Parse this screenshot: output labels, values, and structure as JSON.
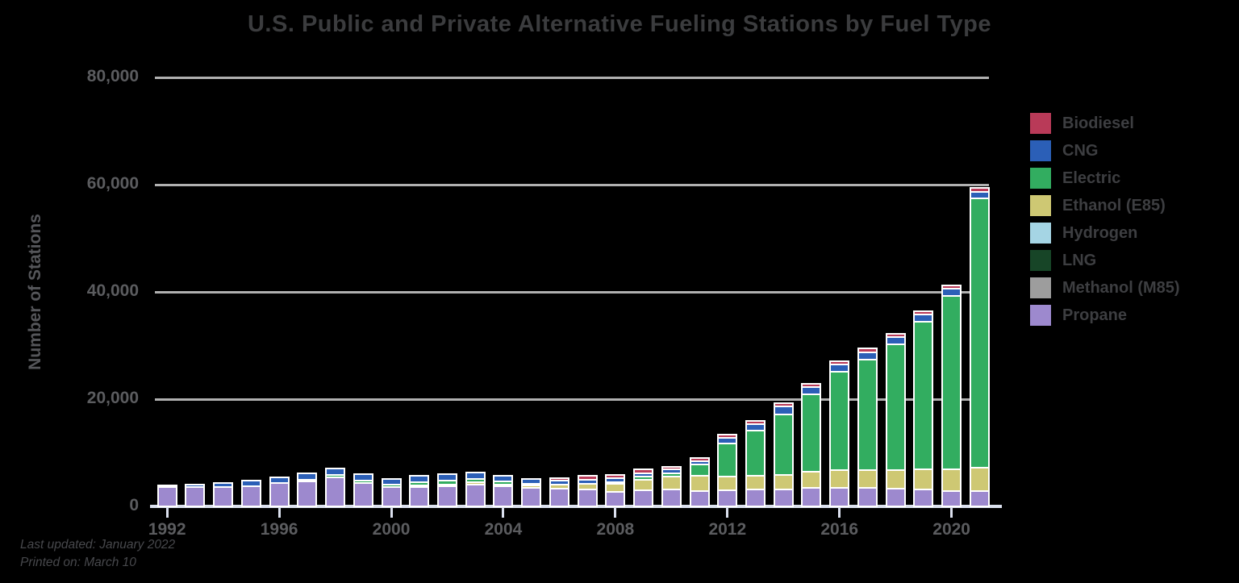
{
  "title": "U.S. Public and Private Alternative Fueling Stations by Fuel Type",
  "y_axis": {
    "label": "Number of Stations",
    "ticks": [
      {
        "value": 80000,
        "label": "80,000"
      },
      {
        "value": 60000,
        "label": "60,000"
      },
      {
        "value": 40000,
        "label": "40,000"
      },
      {
        "value": 20000,
        "label": "20,000"
      },
      {
        "value": 0,
        "label": "0"
      }
    ]
  },
  "x_axis": {
    "tick_years": [
      "1992",
      "1996",
      "2000",
      "2004",
      "2008",
      "2012",
      "2016",
      "2020"
    ]
  },
  "footer": {
    "line1": "Last updated: January 2022",
    "line2": "Printed on: March 10"
  },
  "colors": {
    "background": "#000000",
    "bar_outline": "#ffffff",
    "gridline": "#b0b0b0",
    "axis_line": "#dbe0ee",
    "title_text": "#3b3c3e",
    "axis_text": "#5b5c5f",
    "legend_text": "#3d3e41"
  },
  "legend": [
    {
      "name": "Biodiesel",
      "color": "#b93a58"
    },
    {
      "name": "CNG",
      "color": "#2b5fb7"
    },
    {
      "name": "Electric",
      "color": "#32ad60"
    },
    {
      "name": "Ethanol (E85)",
      "color": "#cec873"
    },
    {
      "name": "Hydrogen",
      "color": "#a5d5e4"
    },
    {
      "name": "LNG",
      "color": "#174527"
    },
    {
      "name": "Methanol (M85)",
      "color": "#9d9d9d"
    },
    {
      "name": "Propane",
      "color": "#9d89ce"
    }
  ],
  "chart_data": {
    "type": "bar",
    "stacked": true,
    "title": "U.S. Public and Private Alternative Fueling Stations by Fuel Type",
    "xlabel": "",
    "ylabel": "Number of Stations",
    "ylim": [
      0,
      80000
    ],
    "grid": true,
    "legend_position": "right",
    "stack_order_top_to_bottom": [
      "Biodiesel",
      "CNG",
      "Electric",
      "Ethanol (E85)",
      "Hydrogen",
      "LNG",
      "Methanol (M85)",
      "Propane"
    ],
    "categories": [
      "1992",
      "1993",
      "1994",
      "1995",
      "1996",
      "1997",
      "1998",
      "1999",
      "2000",
      "2001",
      "2002",
      "2003",
      "2004",
      "2005",
      "2006",
      "2007",
      "2008",
      "2009",
      "2010",
      "2011",
      "2012",
      "2013",
      "2014",
      "2015",
      "2016",
      "2017",
      "2018",
      "2019",
      "2020",
      "2021"
    ],
    "series": [
      {
        "name": "Biodiesel",
        "color": "#b93a58",
        "values": [
          0,
          0,
          0,
          0,
          0,
          0,
          0,
          0,
          0,
          0,
          0,
          0,
          0,
          0,
          450,
          650,
          600,
          650,
          600,
          600,
          600,
          650,
          650,
          650,
          650,
          750,
          700,
          700,
          700,
          750
        ]
      },
      {
        "name": "CNG",
        "color": "#2b5fb7",
        "values": [
          350,
          450,
          700,
          1050,
          1150,
          1200,
          1250,
          1150,
          1050,
          1100,
          1150,
          1200,
          1100,
          900,
          750,
          800,
          700,
          700,
          700,
          700,
          1000,
          1200,
          1400,
          1300,
          1300,
          1300,
          1250,
          1300,
          1300,
          1200
        ]
      },
      {
        "name": "Electric",
        "color": "#32ad60",
        "values": [
          0,
          0,
          20,
          180,
          250,
          300,
          400,
          400,
          550,
          600,
          800,
          700,
          600,
          400,
          250,
          250,
          400,
          500,
          650,
          2100,
          6200,
          8400,
          11300,
          14500,
          18300,
          20700,
          23500,
          27500,
          32300,
          50300
        ]
      },
      {
        "name": "Ethanol (E85)",
        "color": "#cec873",
        "values": [
          0,
          30,
          50,
          100,
          150,
          180,
          200,
          250,
          280,
          300,
          320,
          350,
          300,
          450,
          700,
          1100,
          1400,
          2000,
          2400,
          2800,
          2600,
          2600,
          2700,
          3000,
          3300,
          3300,
          3550,
          3800,
          4050,
          4400
        ]
      },
      {
        "name": "Hydrogen",
        "color": "#a5d5e4",
        "values": [
          0,
          0,
          0,
          0,
          0,
          0,
          0,
          0,
          0,
          0,
          0,
          0,
          0,
          5,
          10,
          15,
          20,
          25,
          30,
          35,
          40,
          45,
          50,
          55,
          58,
          60,
          60,
          60,
          60,
          60
        ]
      },
      {
        "name": "LNG",
        "color": "#174527",
        "values": [
          40,
          50,
          60,
          60,
          70,
          80,
          90,
          90,
          90,
          90,
          90,
          90,
          90,
          80,
          80,
          80,
          70,
          70,
          70,
          70,
          70,
          80,
          90,
          100,
          110,
          110,
          110,
          110,
          110,
          110
        ]
      },
      {
        "name": "Methanol (M85)",
        "color": "#9d9d9d",
        "values": [
          60,
          70,
          80,
          90,
          90,
          80,
          60,
          0,
          0,
          0,
          0,
          0,
          0,
          0,
          0,
          0,
          0,
          0,
          0,
          0,
          0,
          0,
          0,
          0,
          0,
          0,
          0,
          0,
          0,
          0
        ]
      },
      {
        "name": "Propane",
        "color": "#9d89ce",
        "values": [
          3250,
          3250,
          3300,
          3400,
          4000,
          4300,
          5100,
          4100,
          3250,
          3350,
          3450,
          3800,
          3450,
          3100,
          3000,
          2800,
          2450,
          2700,
          2800,
          2600,
          2700,
          2800,
          2900,
          3100,
          3200,
          3100,
          2950,
          2850,
          2600,
          2500
        ]
      }
    ]
  }
}
